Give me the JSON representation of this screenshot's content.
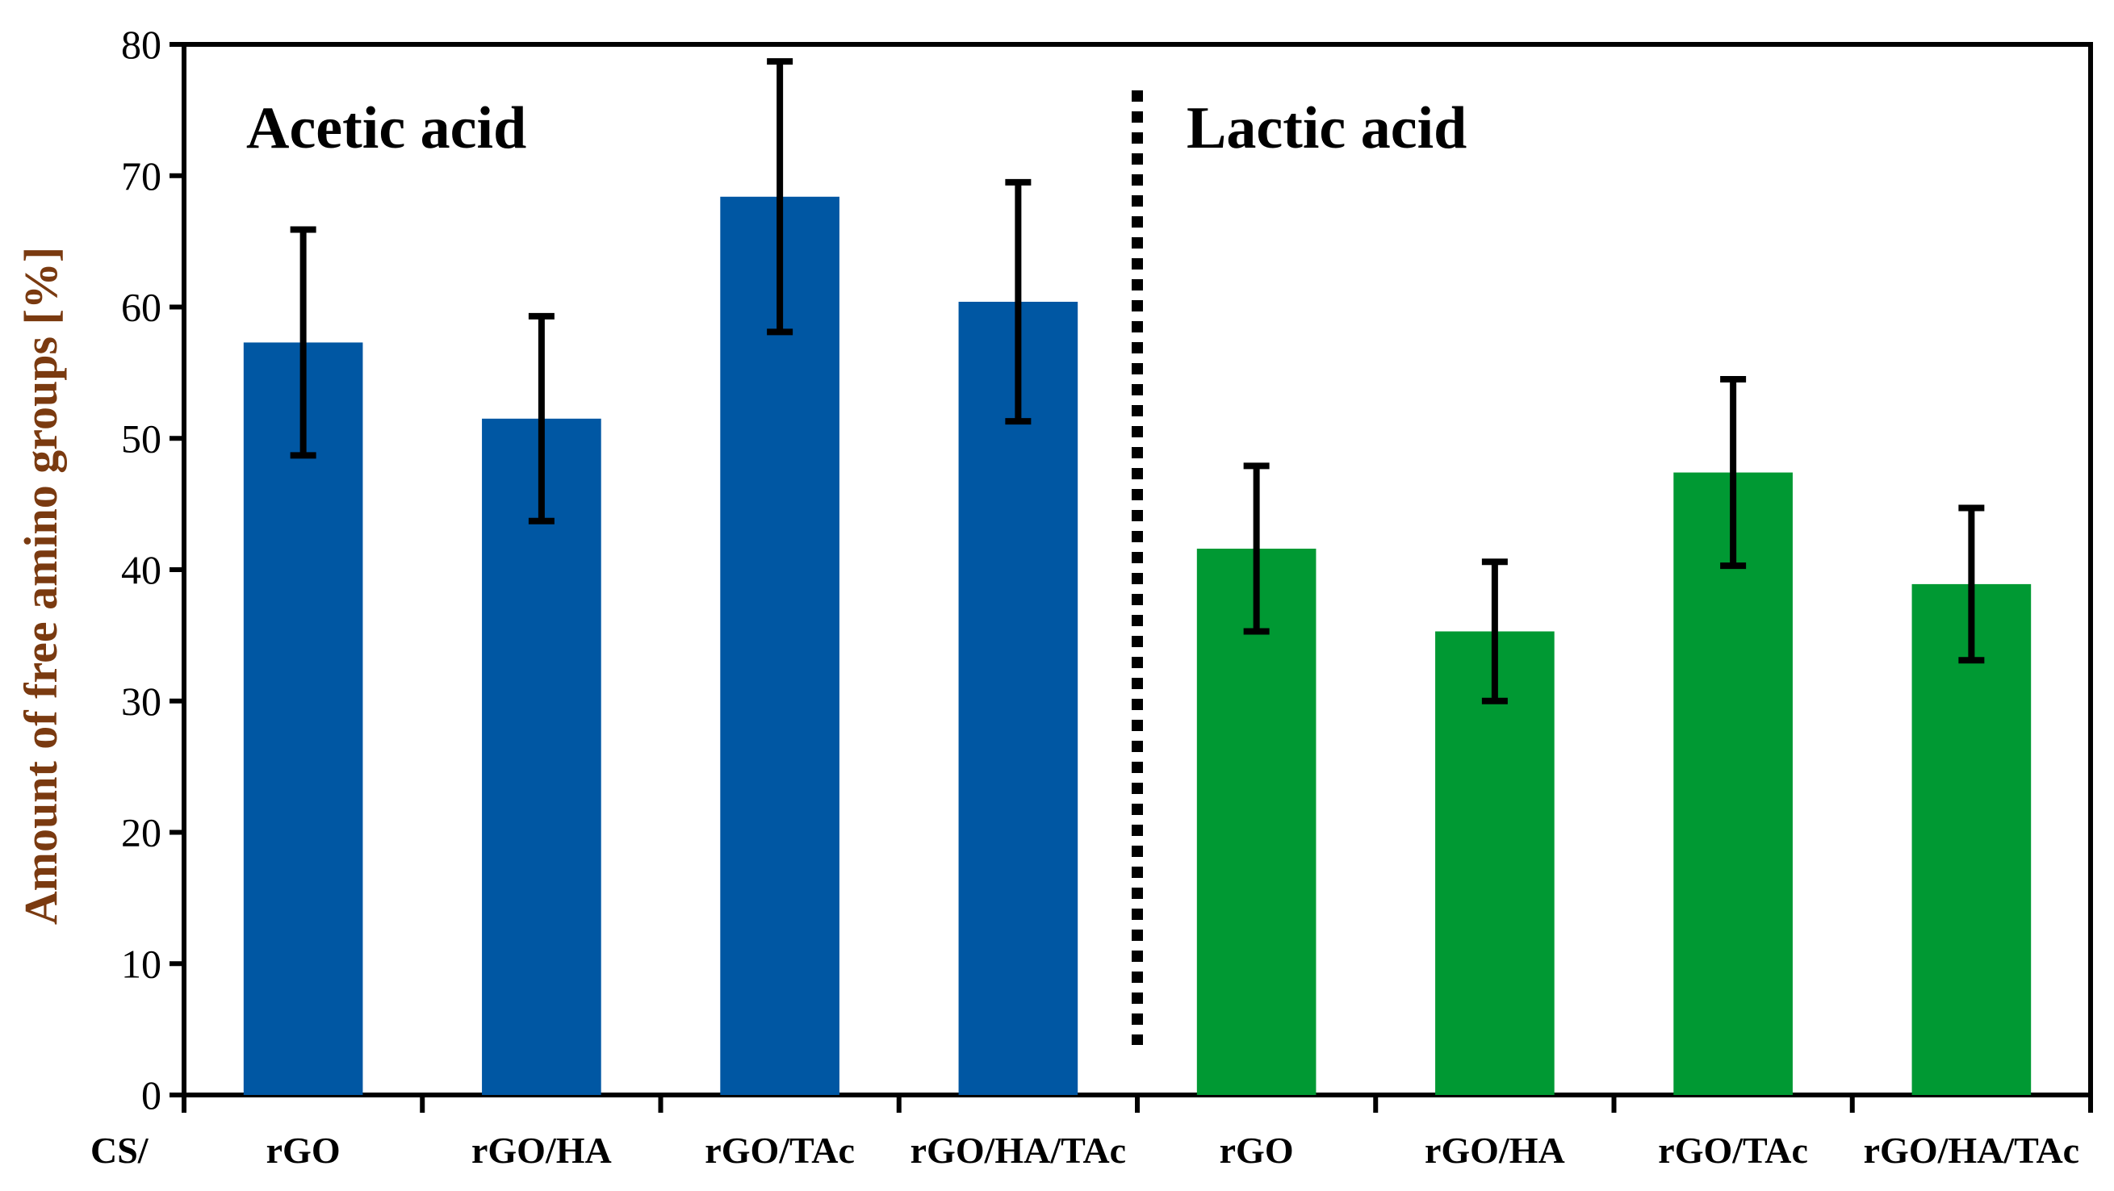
{
  "chart_data": {
    "type": "bar",
    "title": "",
    "ylabel": "Amount of free amino groups [%]",
    "xlabel": "",
    "ylim": [
      0,
      80
    ],
    "yticks": [
      0,
      10,
      20,
      30,
      40,
      50,
      60,
      70,
      80
    ],
    "x_prefix": "CS/",
    "groups": [
      {
        "name": "Acetic acid",
        "color": "#0057A3",
        "categories": [
          "rGO",
          "rGO/HA",
          "rGO/TAc",
          "rGO/HA/TAc"
        ],
        "values": [
          57.3,
          51.5,
          68.4,
          60.4
        ],
        "errors": [
          8.6,
          7.8,
          10.3,
          9.1
        ]
      },
      {
        "name": "Lactic acid",
        "color": "#009933",
        "categories": [
          "rGO",
          "rGO/HA",
          "rGO/TAc",
          "rGO/HA/TAc"
        ],
        "values": [
          41.6,
          35.3,
          47.4,
          38.9
        ],
        "errors": [
          6.3,
          5.3,
          7.1,
          5.8
        ]
      }
    ]
  },
  "colors": {
    "ylabel": "#7a3a10",
    "axis": "#000000",
    "error_bar": "#000000"
  }
}
